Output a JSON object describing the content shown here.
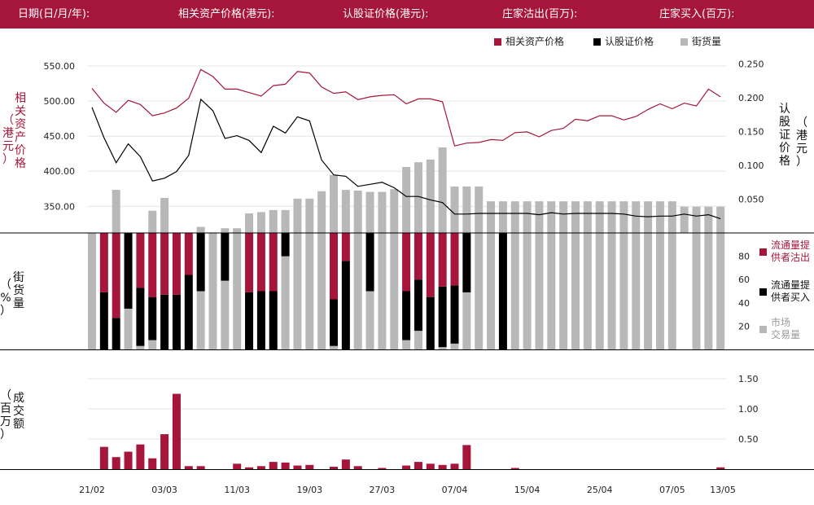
{
  "header": {
    "date": "日期(日/月/年):",
    "underlying_price": "相关资产价格(港元):",
    "warrant_price": "认股证价格(港元):",
    "mm_sell": "庄家沽出(百万):",
    "mm_buy": "庄家买入(百万):"
  },
  "legend_top": [
    "相关资产价格",
    "认股证价格",
    "街货量"
  ],
  "legend_mid": [
    "流通量提",
    "供者沽出",
    "流通量提",
    "供者买入",
    "市场",
    "交易量"
  ],
  "axis_labels": {
    "left_top": [
      "相",
      "关",
      "资",
      "产",
      "价",
      "格"
    ],
    "left_top_paren": [
      "（",
      "港",
      "元",
      "）"
    ],
    "right_top": [
      "认",
      "股",
      "证",
      "价",
      "格"
    ],
    "right_top_paren": [
      "（",
      "港",
      "元",
      "）"
    ],
    "mid_paren": [
      "（",
      "%",
      "）"
    ],
    "mid": [
      "街",
      "货",
      "量"
    ],
    "bottom_paren": [
      "（",
      "百",
      "万",
      "）"
    ],
    "bottom": [
      "成",
      "交",
      "额"
    ]
  },
  "colors": {
    "accent": "#a6153a",
    "black": "#000000",
    "gray": "#b8b8b8",
    "grid": "#e4e4e4"
  },
  "chart_data": [
    {
      "type": "line",
      "name": "price_panel",
      "x_tick_labels": [
        "21/02",
        "03/03",
        "11/03",
        "19/03",
        "27/03",
        "07/04",
        "15/04",
        "25/04",
        "07/05",
        "13/05"
      ],
      "x_tick_index": [
        0,
        6,
        12,
        18,
        24,
        30,
        36,
        42,
        48,
        52
      ],
      "y_left": {
        "ticks": [
          "550.00",
          "500.00",
          "450.00",
          "400.00",
          "350.00"
        ],
        "ylim": [
          312,
          572
        ]
      },
      "y_right": {
        "ticks": [
          "0.250",
          "0.200",
          "0.150",
          "0.100",
          "0.050"
        ],
        "ylim": [
          0.0,
          0.2702
        ]
      },
      "series": [
        {
          "name": "相关资产价格",
          "axis": "left",
          "color": "#a6153a",
          "values": [
            518,
            497,
            484,
            501,
            495,
            479,
            483,
            490,
            504,
            545,
            535,
            517,
            517,
            512,
            507,
            522,
            524,
            542,
            540,
            520,
            511,
            513,
            502,
            506,
            508,
            509,
            496,
            503,
            503,
            499,
            436,
            440,
            441,
            445,
            444,
            455,
            456,
            449,
            458,
            461,
            474,
            472,
            479,
            479,
            473,
            478,
            488,
            496,
            489,
            497,
            493,
            517,
            506
          ]
        },
        {
          "name": "认股证价格",
          "axis": "right",
          "color": "#000000",
          "values": [
            0.186,
            0.141,
            0.104,
            0.132,
            0.113,
            0.077,
            0.081,
            0.091,
            0.115,
            0.198,
            0.181,
            0.14,
            0.144,
            0.137,
            0.119,
            0.158,
            0.148,
            0.172,
            0.166,
            0.108,
            0.086,
            0.084,
            0.069,
            0.072,
            0.075,
            0.067,
            0.054,
            0.054,
            0.049,
            0.045,
            0.028,
            0.028,
            0.029,
            0.029,
            0.029,
            0.029,
            0.029,
            0.027,
            0.03,
            0.028,
            0.029,
            0.029,
            0.029,
            0.029,
            0.028,
            0.025,
            0.024,
            0.025,
            0.025,
            0.028,
            0.025,
            0.027,
            0.021
          ]
        }
      ]
    },
    {
      "type": "bar",
      "name": "outstanding_panel",
      "legend": [
        "流通量提供者沽出",
        "流通量提供者买入",
        "市场交易量"
      ],
      "street_volume_series": {
        "name": "街货量",
        "color": "#b8b8b8",
        "values": [
          0,
          0,
          29,
          0,
          0,
          17,
          24,
          0,
          0,
          2,
          0,
          19,
          19,
          14,
          15,
          16,
          16,
          20,
          20,
          23,
          0,
          0,
          0,
          0,
          0,
          0,
          0,
          0,
          0,
          0,
          13,
          13,
          13,
          9,
          9,
          9,
          9,
          9,
          9,
          9,
          9,
          9,
          9,
          9,
          9,
          9,
          9,
          9,
          9,
          4,
          4,
          4,
          4
        ]
      },
      "street_volume_top": [
        null,
        null,
        0.364,
        null,
        null,
        0.333,
        0.352,
        null,
        null,
        0.309,
        null,
        0.307,
        0.307,
        0.329,
        0.331,
        0.334,
        0.334,
        0.351,
        0.351,
        0.362,
        0.386,
        0.364,
        0.363,
        0.361,
        0.361,
        0.365,
        0.398,
        0.405,
        0.409,
        0.427,
        0.369,
        0.369,
        0.369,
        0.347,
        0.347,
        0.347,
        0.347,
        0.347,
        0.347,
        0.347,
        0.347,
        0.347,
        0.347,
        0.347,
        0.347,
        0.347,
        0.347,
        0.347,
        0.347,
        0.339,
        0.339,
        0.339,
        0.339
      ],
      "y_right": {
        "ticks": [
          "80",
          "60",
          "40",
          "20"
        ],
        "ylim": [
          0,
          100
        ]
      },
      "mm_sell": [
        0,
        49,
        73,
        0,
        47,
        55,
        52,
        53,
        35,
        0,
        0,
        0,
        0,
        50,
        50,
        49,
        0,
        0,
        0,
        0,
        57,
        24,
        0,
        0,
        0,
        0,
        50,
        40,
        55,
        46,
        45,
        0,
        0,
        0,
        0,
        0,
        0,
        0,
        0,
        0,
        0,
        0,
        0,
        0,
        0,
        0,
        0,
        0,
        0,
        0,
        0,
        0,
        0
      ],
      "mm_buy": [
        0,
        49,
        27,
        65,
        50,
        37,
        47,
        47,
        64,
        50,
        0,
        41,
        0,
        49,
        50,
        50,
        20,
        0,
        0,
        0,
        40,
        76,
        0,
        50,
        0,
        0,
        42,
        44,
        45,
        52,
        50,
        51,
        0,
        0,
        100,
        0,
        0,
        0,
        0,
        0,
        0,
        0,
        0,
        0,
        0,
        0,
        0,
        0,
        0,
        0,
        0,
        0,
        0
      ],
      "market": [
        100,
        0,
        0,
        35,
        3,
        8,
        0,
        0,
        0,
        50,
        100,
        59,
        100,
        0,
        0,
        0,
        80,
        100,
        100,
        100,
        3,
        0,
        100,
        50,
        100,
        100,
        8,
        16,
        0,
        2,
        5,
        49,
        100,
        100,
        0,
        100,
        100,
        100,
        100,
        100,
        100,
        100,
        100,
        100,
        100,
        100,
        100,
        100,
        100,
        0,
        100,
        100,
        100
      ]
    },
    {
      "type": "bar",
      "name": "turnover_panel",
      "color": "#a6153a",
      "y_right": {
        "ticks": [
          "1.50",
          "1.00",
          "0.50"
        ],
        "ylim": [
          0,
          1.5
        ]
      },
      "values": [
        0,
        0.37,
        0.2,
        0.29,
        0.41,
        0.18,
        0.58,
        1.25,
        0.05,
        0.05,
        0,
        0,
        0.09,
        0.03,
        0.05,
        0.12,
        0.11,
        0.06,
        0.07,
        0,
        0.04,
        0.16,
        0.05,
        0,
        0.02,
        0,
        0.06,
        0.12,
        0.09,
        0.07,
        0.09,
        0.4,
        0,
        0,
        0,
        0.02,
        0,
        0,
        0,
        0,
        0,
        0,
        0,
        0,
        0,
        0,
        0,
        0,
        0,
        0,
        0,
        0,
        0.03
      ]
    }
  ]
}
